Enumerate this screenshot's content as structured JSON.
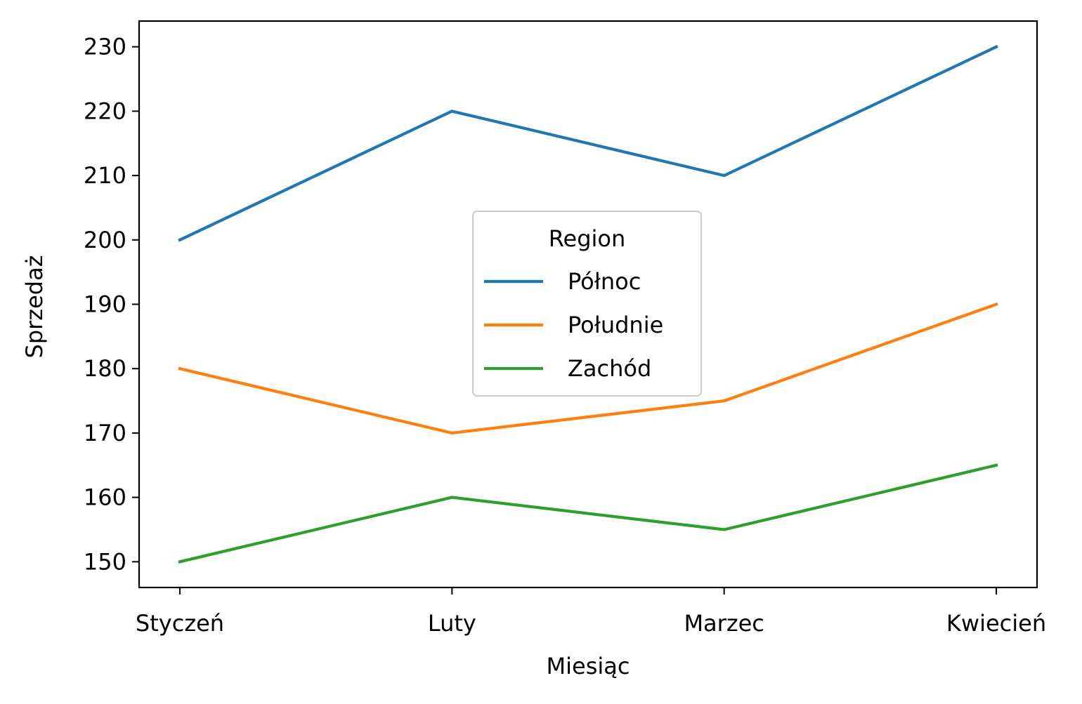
{
  "chart_data": {
    "type": "line",
    "title": "",
    "xlabel": "Miesiąc",
    "ylabel": "Sprzedaż",
    "categories": [
      "Styczeń",
      "Luty",
      "Marzec",
      "Kwiecień"
    ],
    "ylim": [
      146,
      234
    ],
    "yticks": [
      150,
      160,
      170,
      180,
      190,
      200,
      210,
      220,
      230
    ],
    "grid": false,
    "legend": {
      "title": "Region",
      "placement": "center"
    },
    "series": [
      {
        "name": "Północ",
        "color": "#1f77b4",
        "values": [
          200,
          220,
          210,
          230
        ]
      },
      {
        "name": "Południe",
        "color": "#ff7f0e",
        "values": [
          180,
          170,
          175,
          190
        ]
      },
      {
        "name": "Zachód",
        "color": "#2ca02c",
        "values": [
          150,
          160,
          155,
          165
        ]
      }
    ]
  }
}
